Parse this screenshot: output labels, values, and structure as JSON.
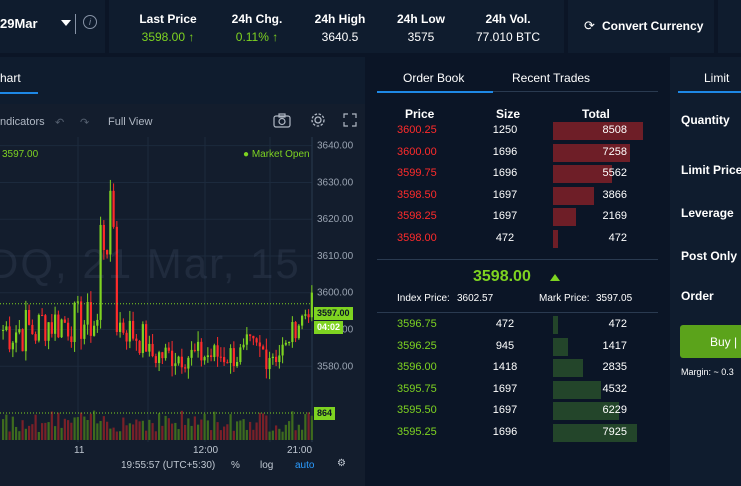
{
  "header": {
    "symbol": "29Mar",
    "info_icon": "info-icon",
    "stats": [
      {
        "label": "Last Price",
        "value": "3598.00 ↑",
        "color": "#7ed321"
      },
      {
        "label": "24h Chg.",
        "value": "0.11% ↑",
        "color": "#7ed321"
      },
      {
        "label": "24h High",
        "value": "3640.5"
      },
      {
        "label": "24h Low",
        "value": "3575"
      },
      {
        "label": "24h Vol.",
        "value": "77.010 BTC"
      }
    ],
    "convert_icon": "refresh-icon",
    "convert_label": "Convert Currency"
  },
  "chart": {
    "tab_label": "hart",
    "toolbar": {
      "indicators": "ndicators",
      "undo_icon": "undo-icon",
      "redo_icon": "redo-icon",
      "full_view": "Full View",
      "camera_icon": "camera-icon",
      "settings_icon": "gear-icon",
      "expand_icon": "expand-icon"
    },
    "legend_price": "3597.00",
    "market_status": "● Market Open",
    "watermark": "DQ, 21 Mar, 15",
    "price_tag": "3597.00",
    "countdown_tag": "04:02",
    "volume_tag": "864",
    "footer": {
      "time": "19:55:57 (UTC+5:30)",
      "percent": "%",
      "log": "log",
      "auto": "auto",
      "settings_icon": "gear-icon"
    }
  },
  "chart_data": {
    "type": "candlestick",
    "ylim": [
      3573,
      3641
    ],
    "yticks": [
      "3640.00",
      "3630.00",
      "3620.00",
      "3610.00",
      "3600.00",
      "3590.00",
      "3580.00"
    ],
    "xticks": [
      "11",
      "12:00",
      "21:00"
    ],
    "last_price": 3597.0,
    "volume_last": 864
  },
  "orderbook": {
    "tabs": [
      "Order Book",
      "Recent Trades"
    ],
    "headers": {
      "price": "Price",
      "size": "Size",
      "total": "Total"
    },
    "asks": [
      {
        "price": "3600.25",
        "size": "1250",
        "total": "8508"
      },
      {
        "price": "3600.00",
        "size": "1696",
        "total": "7258"
      },
      {
        "price": "3599.75",
        "size": "1696",
        "total": "5562"
      },
      {
        "price": "3598.50",
        "size": "1697",
        "total": "3866"
      },
      {
        "price": "3598.25",
        "size": "1697",
        "total": "2169"
      },
      {
        "price": "3598.00",
        "size": "472",
        "total": "472"
      }
    ],
    "mid_price": "3598.00",
    "index_price_label": "Index Price:",
    "index_price": "3602.57",
    "mark_price_label": "Mark Price:",
    "mark_price": "3597.05",
    "bids": [
      {
        "price": "3596.75",
        "size": "472",
        "total": "472"
      },
      {
        "price": "3596.25",
        "size": "945",
        "total": "1417"
      },
      {
        "price": "3596.00",
        "size": "1418",
        "total": "2835"
      },
      {
        "price": "3595.75",
        "size": "1697",
        "total": "4532"
      },
      {
        "price": "3595.50",
        "size": "1697",
        "total": "6229"
      },
      {
        "price": "3595.25",
        "size": "1696",
        "total": "7925"
      }
    ],
    "ask_color": "#ff2b2b",
    "bid_color": "#7ed321"
  },
  "order_form": {
    "tab": "Limit",
    "fields": [
      "Quantity",
      "Limit Price",
      "Leverage",
      "Post Only",
      "Order"
    ],
    "buy_label": "Buy |",
    "margin_text": "Margin:  ~ 0.3"
  }
}
